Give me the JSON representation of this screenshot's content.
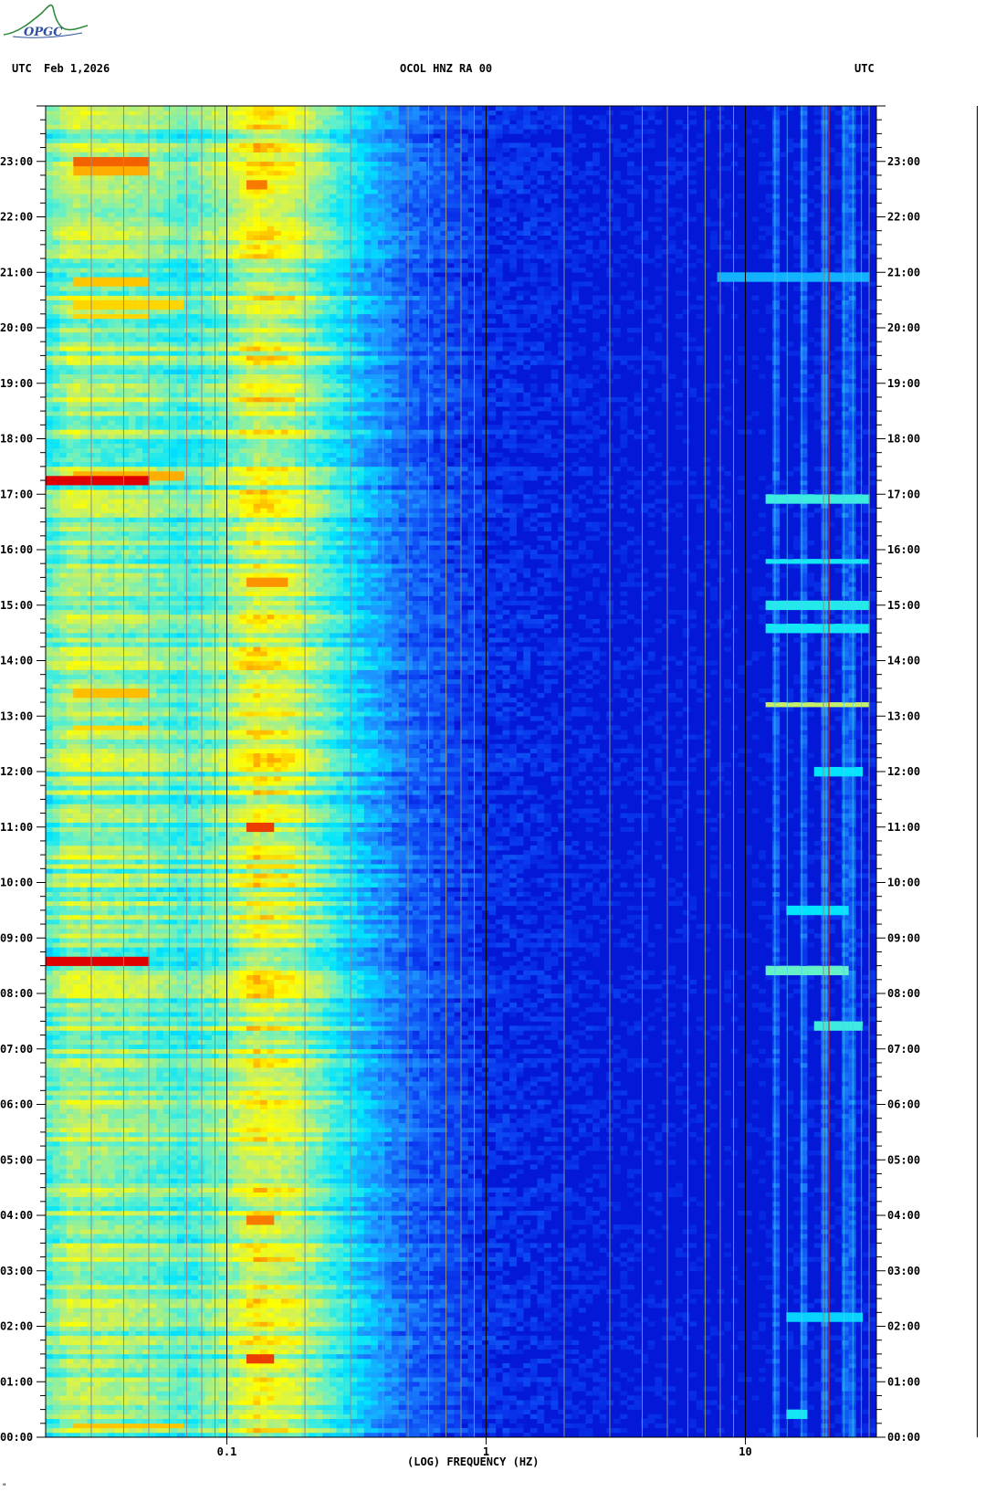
{
  "header": {
    "left_label": "UTC",
    "date": "Feb 1,2026",
    "station": "OCOL HNZ RA 00",
    "right_label": "UTC"
  },
  "logo": {
    "text": "OPGC"
  },
  "corner_mark": "\"",
  "chart_data": {
    "type": "heatmap",
    "title": "OCOL HNZ RA 00",
    "xlabel": "(LOG) FREQUENCY (HZ)",
    "ylabel": "UTC",
    "x_scale": "log",
    "xlim": [
      0.02,
      32
    ],
    "ylim": [
      0,
      24
    ],
    "x_ticks": [
      {
        "value": 0.1,
        "label": "0.1"
      },
      {
        "value": 1,
        "label": "1"
      },
      {
        "value": 10,
        "label": "10"
      }
    ],
    "y_ticks": [
      {
        "value": 0,
        "label": "00:00"
      },
      {
        "value": 1,
        "label": "01:00"
      },
      {
        "value": 2,
        "label": "02:00"
      },
      {
        "value": 3,
        "label": "03:00"
      },
      {
        "value": 4,
        "label": "04:00"
      },
      {
        "value": 5,
        "label": "05:00"
      },
      {
        "value": 6,
        "label": "06:00"
      },
      {
        "value": 7,
        "label": "07:00"
      },
      {
        "value": 8,
        "label": "08:00"
      },
      {
        "value": 9,
        "label": "09:00"
      },
      {
        "value": 10,
        "label": "10:00"
      },
      {
        "value": 11,
        "label": "11:00"
      },
      {
        "value": 12,
        "label": "12:00"
      },
      {
        "value": 13,
        "label": "13:00"
      },
      {
        "value": 14,
        "label": "14:00"
      },
      {
        "value": 15,
        "label": "15:00"
      },
      {
        "value": 16,
        "label": "16:00"
      },
      {
        "value": 17,
        "label": "17:00"
      },
      {
        "value": 18,
        "label": "18:00"
      },
      {
        "value": 19,
        "label": "19:00"
      },
      {
        "value": 20,
        "label": "20:00"
      },
      {
        "value": 21,
        "label": "21:00"
      },
      {
        "value": 22,
        "label": "22:00"
      },
      {
        "value": 23,
        "label": "23:00"
      }
    ],
    "colormap": [
      "#0000c8",
      "#0a3cf0",
      "#1e90ff",
      "#00e5ff",
      "#64f0c8",
      "#c8f064",
      "#ffff00",
      "#ff9900",
      "#e00000"
    ],
    "frequency_profile": [
      {
        "freq": 0.02,
        "level": 0.45
      },
      {
        "freq": 0.025,
        "level": 0.58
      },
      {
        "freq": 0.05,
        "level": 0.52
      },
      {
        "freq": 0.07,
        "level": 0.45
      },
      {
        "freq": 0.1,
        "level": 0.55
      },
      {
        "freq": 0.13,
        "level": 0.68
      },
      {
        "freq": 0.18,
        "level": 0.62
      },
      {
        "freq": 0.25,
        "level": 0.45
      },
      {
        "freq": 0.35,
        "level": 0.3
      },
      {
        "freq": 0.5,
        "level": 0.18
      },
      {
        "freq": 1,
        "level": 0.1
      },
      {
        "freq": 3,
        "level": 0.06
      },
      {
        "freq": 10,
        "level": 0.04
      },
      {
        "freq": 32,
        "level": 0.06
      }
    ],
    "grid_lines_hz": [
      0.03,
      0.04,
      0.05,
      0.06,
      0.07,
      0.08,
      0.09,
      0.2,
      0.3,
      0.4,
      0.5,
      0.6,
      0.7,
      0.8,
      0.9,
      2,
      3,
      4,
      5,
      6,
      7,
      8,
      9,
      20,
      30
    ],
    "strong_lines_hz": [
      0.1,
      1,
      10
    ],
    "persistent_lines_hz": [
      13,
      14.5,
      16.5,
      20.5,
      24,
      26,
      28
    ],
    "red_line_hz": 21,
    "bright_events": [
      {
        "time": 23.0,
        "fmin": 0.025,
        "fmax": 0.05,
        "intensity": 0.92
      },
      {
        "time": 22.85,
        "fmin": 0.025,
        "fmax": 0.05,
        "intensity": 0.85
      },
      {
        "time": 20.85,
        "fmin": 0.025,
        "fmax": 0.05,
        "intensity": 0.82
      },
      {
        "time": 20.4,
        "fmin": 0.025,
        "fmax": 0.07,
        "intensity": 0.8
      },
      {
        "time": 20.2,
        "fmin": 0.025,
        "fmax": 0.05,
        "intensity": 0.8
      },
      {
        "time": 17.25,
        "fmin": 0.02,
        "fmax": 0.05,
        "intensity": 1.0
      },
      {
        "time": 17.35,
        "fmin": 0.025,
        "fmax": 0.07,
        "intensity": 0.85
      },
      {
        "time": 13.4,
        "fmin": 0.025,
        "fmax": 0.05,
        "intensity": 0.83
      },
      {
        "time": 12.8,
        "fmin": 0.025,
        "fmax": 0.05,
        "intensity": 0.8
      },
      {
        "time": 8.6,
        "fmin": 0.02,
        "fmax": 0.05,
        "intensity": 1.0
      },
      {
        "time": 0.2,
        "fmin": 0.025,
        "fmax": 0.07,
        "intensity": 0.82
      },
      {
        "time": 11.0,
        "fmin": 0.12,
        "fmax": 0.15,
        "intensity": 0.95
      },
      {
        "time": 15.4,
        "fmin": 0.12,
        "fmax": 0.17,
        "intensity": 0.88
      },
      {
        "time": 1.4,
        "fmin": 0.12,
        "fmax": 0.15,
        "intensity": 0.95
      },
      {
        "time": 3.9,
        "fmin": 0.12,
        "fmax": 0.15,
        "intensity": 0.9
      },
      {
        "time": 22.6,
        "fmin": 0.12,
        "fmax": 0.14,
        "intensity": 0.9
      },
      {
        "time": 13.2,
        "fmin": 12,
        "fmax": 30,
        "intensity": 0.62
      },
      {
        "time": 16.9,
        "fmin": 12,
        "fmax": 30,
        "intensity": 0.45
      },
      {
        "time": 15.0,
        "fmin": 12,
        "fmax": 30,
        "intensity": 0.42
      },
      {
        "time": 8.4,
        "fmin": 12,
        "fmax": 25,
        "intensity": 0.5
      },
      {
        "time": 7.4,
        "fmin": 18,
        "fmax": 28,
        "intensity": 0.45
      },
      {
        "time": 14.6,
        "fmin": 12,
        "fmax": 30,
        "intensity": 0.4
      },
      {
        "time": 15.8,
        "fmin": 12,
        "fmax": 30,
        "intensity": 0.4
      },
      {
        "time": 12.0,
        "fmin": 18,
        "fmax": 28,
        "intensity": 0.38
      },
      {
        "time": 9.5,
        "fmin": 14,
        "fmax": 25,
        "intensity": 0.38
      },
      {
        "time": 2.15,
        "fmin": 14,
        "fmax": 28,
        "intensity": 0.35
      },
      {
        "time": 0.4,
        "fmin": 14,
        "fmax": 17,
        "intensity": 0.4
      },
      {
        "time": 20.9,
        "fmin": 8,
        "fmax": 30,
        "intensity": 0.3
      }
    ]
  }
}
